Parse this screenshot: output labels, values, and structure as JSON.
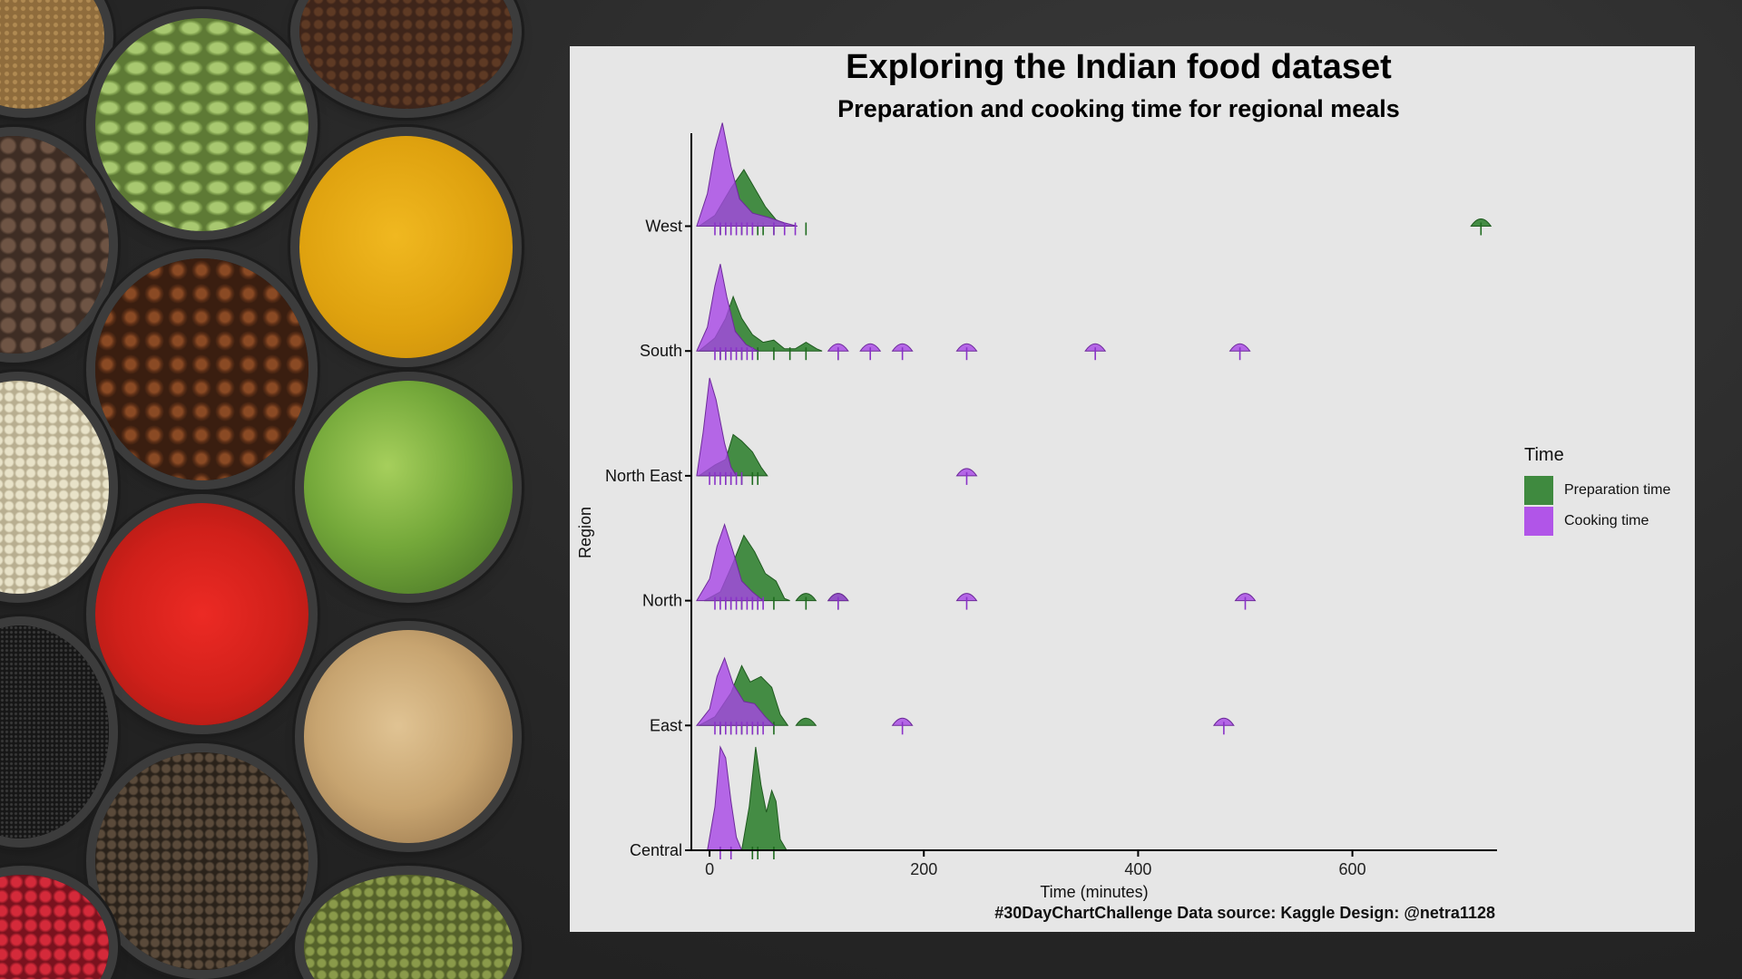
{
  "page": {
    "title": "Exploring the Indian food dataset",
    "subtitle": "Preparation and cooking time for regional meals",
    "caption": "#30DayChartChallenge Data source: Kaggle Design: @netra1128"
  },
  "legend": {
    "title": "Time",
    "items": [
      {
        "label": "Preparation time",
        "color": "#3f8a3f"
      },
      {
        "label": "Cooking time",
        "color": "#b155e8"
      }
    ]
  },
  "chart_data": {
    "type": "ridgeline",
    "title": "Exploring the Indian food dataset",
    "subtitle": "Preparation and cooking time for regional meals",
    "xlabel": "Time (minutes)",
    "ylabel": "Region",
    "xlim": [
      -17,
      735
    ],
    "xticks": [
      0,
      200,
      400,
      600
    ],
    "regions": [
      "Central",
      "East",
      "North",
      "North East",
      "South",
      "West"
    ],
    "series": [
      {
        "name": "Preparation time",
        "color": "#3f8a3f",
        "density": {
          "Central": [
            [
              30,
              0
            ],
            [
              37,
              0.4
            ],
            [
              43,
              0.95
            ],
            [
              48,
              0.6
            ],
            [
              53,
              0.35
            ],
            [
              58,
              0.55
            ],
            [
              62,
              0.45
            ],
            [
              66,
              0.1
            ],
            [
              72,
              0
            ]
          ],
          "East": [
            [
              -10,
              0
            ],
            [
              5,
              0.08
            ],
            [
              20,
              0.3
            ],
            [
              30,
              0.55
            ],
            [
              38,
              0.4
            ],
            [
              48,
              0.45
            ],
            [
              58,
              0.35
            ],
            [
              66,
              0.1
            ],
            [
              73,
              0
            ]
          ],
          "North": [
            [
              -5,
              0
            ],
            [
              10,
              0.08
            ],
            [
              22,
              0.35
            ],
            [
              32,
              0.6
            ],
            [
              42,
              0.45
            ],
            [
              52,
              0.25
            ],
            [
              62,
              0.18
            ],
            [
              70,
              0.02
            ],
            [
              75,
              0
            ]
          ],
          "North East": [
            [
              -10,
              0
            ],
            [
              5,
              0.1
            ],
            [
              15,
              0.15
            ],
            [
              22,
              0.38
            ],
            [
              30,
              0.32
            ],
            [
              40,
              0.22
            ],
            [
              48,
              0.08
            ],
            [
              54,
              0
            ]
          ],
          "South": [
            [
              -10,
              0
            ],
            [
              5,
              0.12
            ],
            [
              15,
              0.3
            ],
            [
              22,
              0.5
            ],
            [
              30,
              0.3
            ],
            [
              40,
              0.15
            ],
            [
              50,
              0.08
            ],
            [
              60,
              0.1
            ],
            [
              70,
              0.02
            ],
            [
              80,
              0.02
            ],
            [
              90,
              0.08
            ],
            [
              100,
              0.02
            ],
            [
              105,
              0
            ]
          ],
          "West": [
            [
              -10,
              0
            ],
            [
              5,
              0.1
            ],
            [
              20,
              0.35
            ],
            [
              32,
              0.52
            ],
            [
              42,
              0.35
            ],
            [
              52,
              0.18
            ],
            [
              62,
              0.06
            ],
            [
              72,
              0.01
            ],
            [
              80,
              0
            ]
          ]
        },
        "outliers": {
          "Central": [],
          "East": [
            90
          ],
          "North": [
            90,
            120
          ],
          "North East": [],
          "South": [],
          "West": [
            720
          ]
        },
        "rug": {
          "Central": [
            40,
            45,
            60
          ],
          "East": [
            10,
            20,
            30,
            40,
            45,
            60
          ],
          "North": [
            15,
            20,
            30,
            40,
            45,
            60,
            90,
            120
          ],
          "North East": [
            15,
            20,
            30,
            40,
            45
          ],
          "South": [
            10,
            15,
            20,
            30,
            45,
            60,
            75,
            90,
            120
          ],
          "West": [
            10,
            15,
            20,
            30,
            40,
            45,
            50,
            60,
            90,
            720
          ]
        }
      },
      {
        "name": "Cooking time",
        "color": "#b155e8",
        "density": {
          "Central": [
            [
              -2,
              0
            ],
            [
              5,
              0.4
            ],
            [
              10,
              0.95
            ],
            [
              15,
              0.85
            ],
            [
              20,
              0.45
            ],
            [
              25,
              0.12
            ],
            [
              30,
              0
            ]
          ],
          "East": [
            [
              -12,
              0
            ],
            [
              0,
              0.15
            ],
            [
              7,
              0.45
            ],
            [
              14,
              0.62
            ],
            [
              22,
              0.38
            ],
            [
              32,
              0.22
            ],
            [
              42,
              0.2
            ],
            [
              52,
              0.08
            ],
            [
              60,
              0
            ]
          ],
          "North": [
            [
              -12,
              0
            ],
            [
              0,
              0.2
            ],
            [
              7,
              0.5
            ],
            [
              14,
              0.7
            ],
            [
              22,
              0.45
            ],
            [
              30,
              0.18
            ],
            [
              40,
              0.08
            ],
            [
              50,
              0
            ]
          ],
          "North East": [
            [
              -12,
              0
            ],
            [
              -6,
              0.4
            ],
            [
              0,
              0.9
            ],
            [
              6,
              0.7
            ],
            [
              14,
              0.3
            ],
            [
              20,
              0.08
            ],
            [
              25,
              0
            ]
          ],
          "South": [
            [
              -12,
              0
            ],
            [
              -2,
              0.22
            ],
            [
              5,
              0.6
            ],
            [
              10,
              0.8
            ],
            [
              16,
              0.5
            ],
            [
              24,
              0.18
            ],
            [
              34,
              0.06
            ],
            [
              45,
              0
            ]
          ],
          "West": [
            [
              -12,
              0
            ],
            [
              -2,
              0.3
            ],
            [
              5,
              0.7
            ],
            [
              12,
              0.95
            ],
            [
              20,
              0.55
            ],
            [
              28,
              0.25
            ],
            [
              40,
              0.12
            ],
            [
              55,
              0.08
            ],
            [
              70,
              0.03
            ],
            [
              82,
              0
            ]
          ]
        },
        "outliers": {
          "Central": [],
          "East": [
            180,
            480
          ],
          "North": [
            120,
            240,
            500
          ],
          "North East": [
            240
          ],
          "South": [
            120,
            150,
            180,
            240,
            360,
            495
          ],
          "West": []
        },
        "rug": {
          "Central": [
            10,
            20
          ],
          "East": [
            5,
            10,
            15,
            20,
            25,
            30,
            35,
            40,
            45,
            50,
            180,
            480
          ],
          "North": [
            5,
            10,
            15,
            20,
            25,
            30,
            35,
            40,
            45,
            50,
            120,
            240,
            500
          ],
          "North East": [
            0,
            5,
            10,
            15,
            20,
            25,
            30,
            240
          ],
          "South": [
            5,
            10,
            15,
            20,
            25,
            30,
            35,
            40,
            120,
            150,
            180,
            240,
            360,
            495
          ],
          "West": [
            5,
            10,
            15,
            20,
            25,
            30,
            35,
            40,
            60,
            70,
            80
          ]
        }
      }
    ]
  }
}
